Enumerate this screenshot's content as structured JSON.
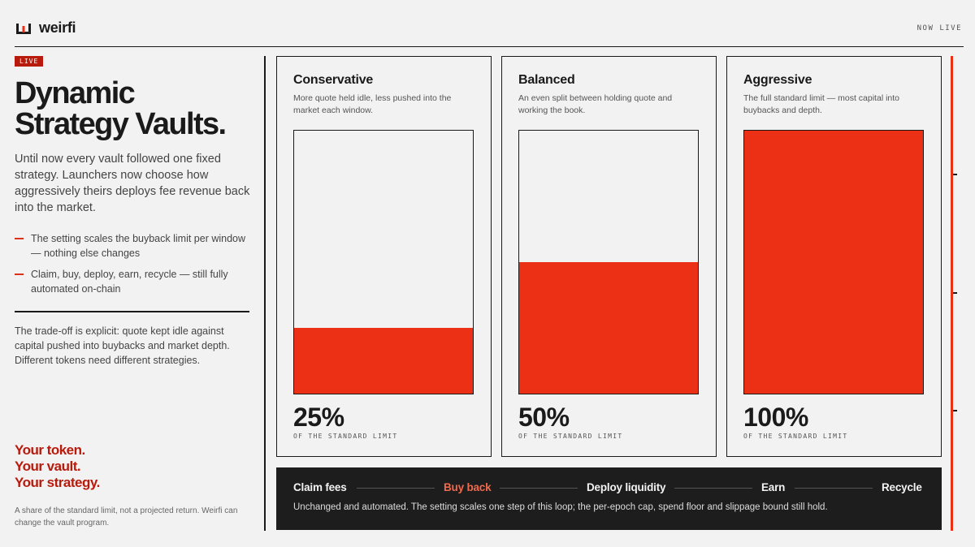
{
  "brand": {
    "name": "weirfi",
    "status": "NOW LIVE"
  },
  "hero": {
    "badge": "LIVE",
    "title": "Dynamic\nStrategy Vaults.",
    "lede": "Until now every vault followed one fixed strategy. Launchers now choose how aggressively theirs deploys fee revenue back into the market.",
    "bullets": [
      "The setting scales the buyback limit per window — nothing else changes",
      "Claim, buy, deploy, earn, recycle — still fully automated on-chain"
    ],
    "tradeoff": "The trade-off is explicit: quote kept idle against capital pushed into buybacks and market depth. Different tokens need different strategies.",
    "tagline": [
      "Your token.",
      "Your vault.",
      "Your strategy."
    ],
    "footnote": "A share of the standard limit, not a projected return. Weirfi can change the vault program."
  },
  "strategies": [
    {
      "name": "Conservative",
      "desc": "More quote held idle, less pushed into the market each window.",
      "percent_label": "25%",
      "fraction": 0.25,
      "caption": "OF THE STANDARD LIMIT"
    },
    {
      "name": "Balanced",
      "desc": "An even split between holding quote and working the book.",
      "percent_label": "50%",
      "fraction": 0.5,
      "caption": "OF THE STANDARD LIMIT"
    },
    {
      "name": "Aggressive",
      "desc": "The full standard limit — most capital into buybacks and depth.",
      "percent_label": "100%",
      "fraction": 1.0,
      "caption": "OF THE STANDARD LIMIT"
    }
  ],
  "loop": {
    "steps": [
      "Claim fees",
      "Buy back",
      "Deploy liquidity",
      "Earn",
      "Recycle"
    ],
    "highlight_step": "Buy back",
    "note": "Unchanged and automated. The setting scales one step of this loop; the per-epoch cap, spend floor and slippage bound still hold."
  },
  "colors": {
    "accent": "#ec3016",
    "accent_dark": "#b81a0c",
    "ink": "#1a1a1a",
    "paper": "#f2f2f2",
    "loop_bg": "#1d1d1d",
    "loop_highlight": "#f06a4c"
  }
}
